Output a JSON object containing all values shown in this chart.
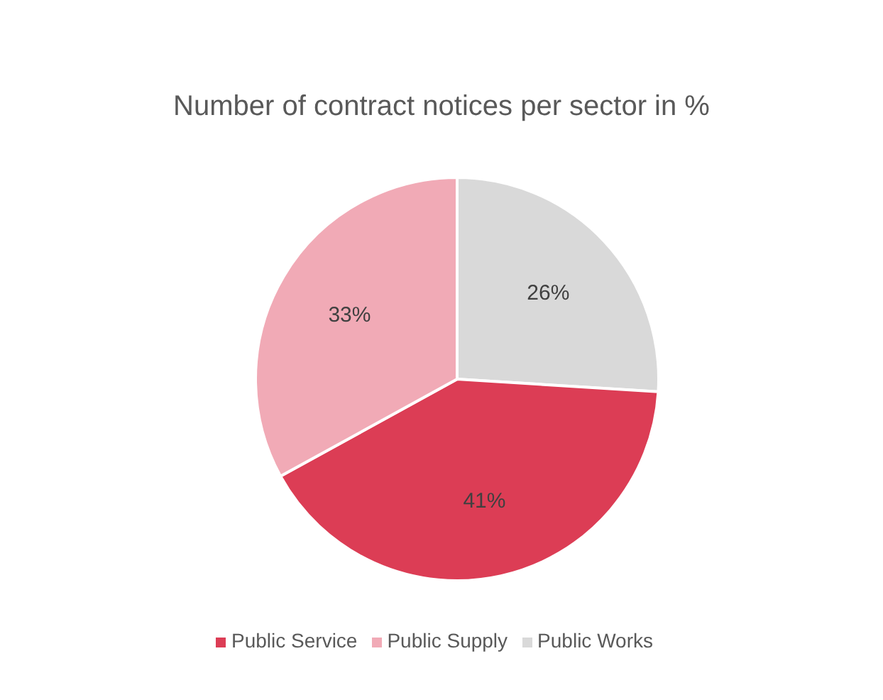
{
  "chart_data": {
    "type": "pie",
    "title": "Number of contract notices per sector in %",
    "categories": [
      "Public Works",
      "Public Service",
      "Public Supply"
    ],
    "values": [
      26,
      41,
      33
    ],
    "colors": [
      "#d9d9d9",
      "#dc3d55",
      "#f1aab6"
    ],
    "value_labels": [
      "26%",
      "41%",
      "33%"
    ],
    "legend": "bottom"
  }
}
